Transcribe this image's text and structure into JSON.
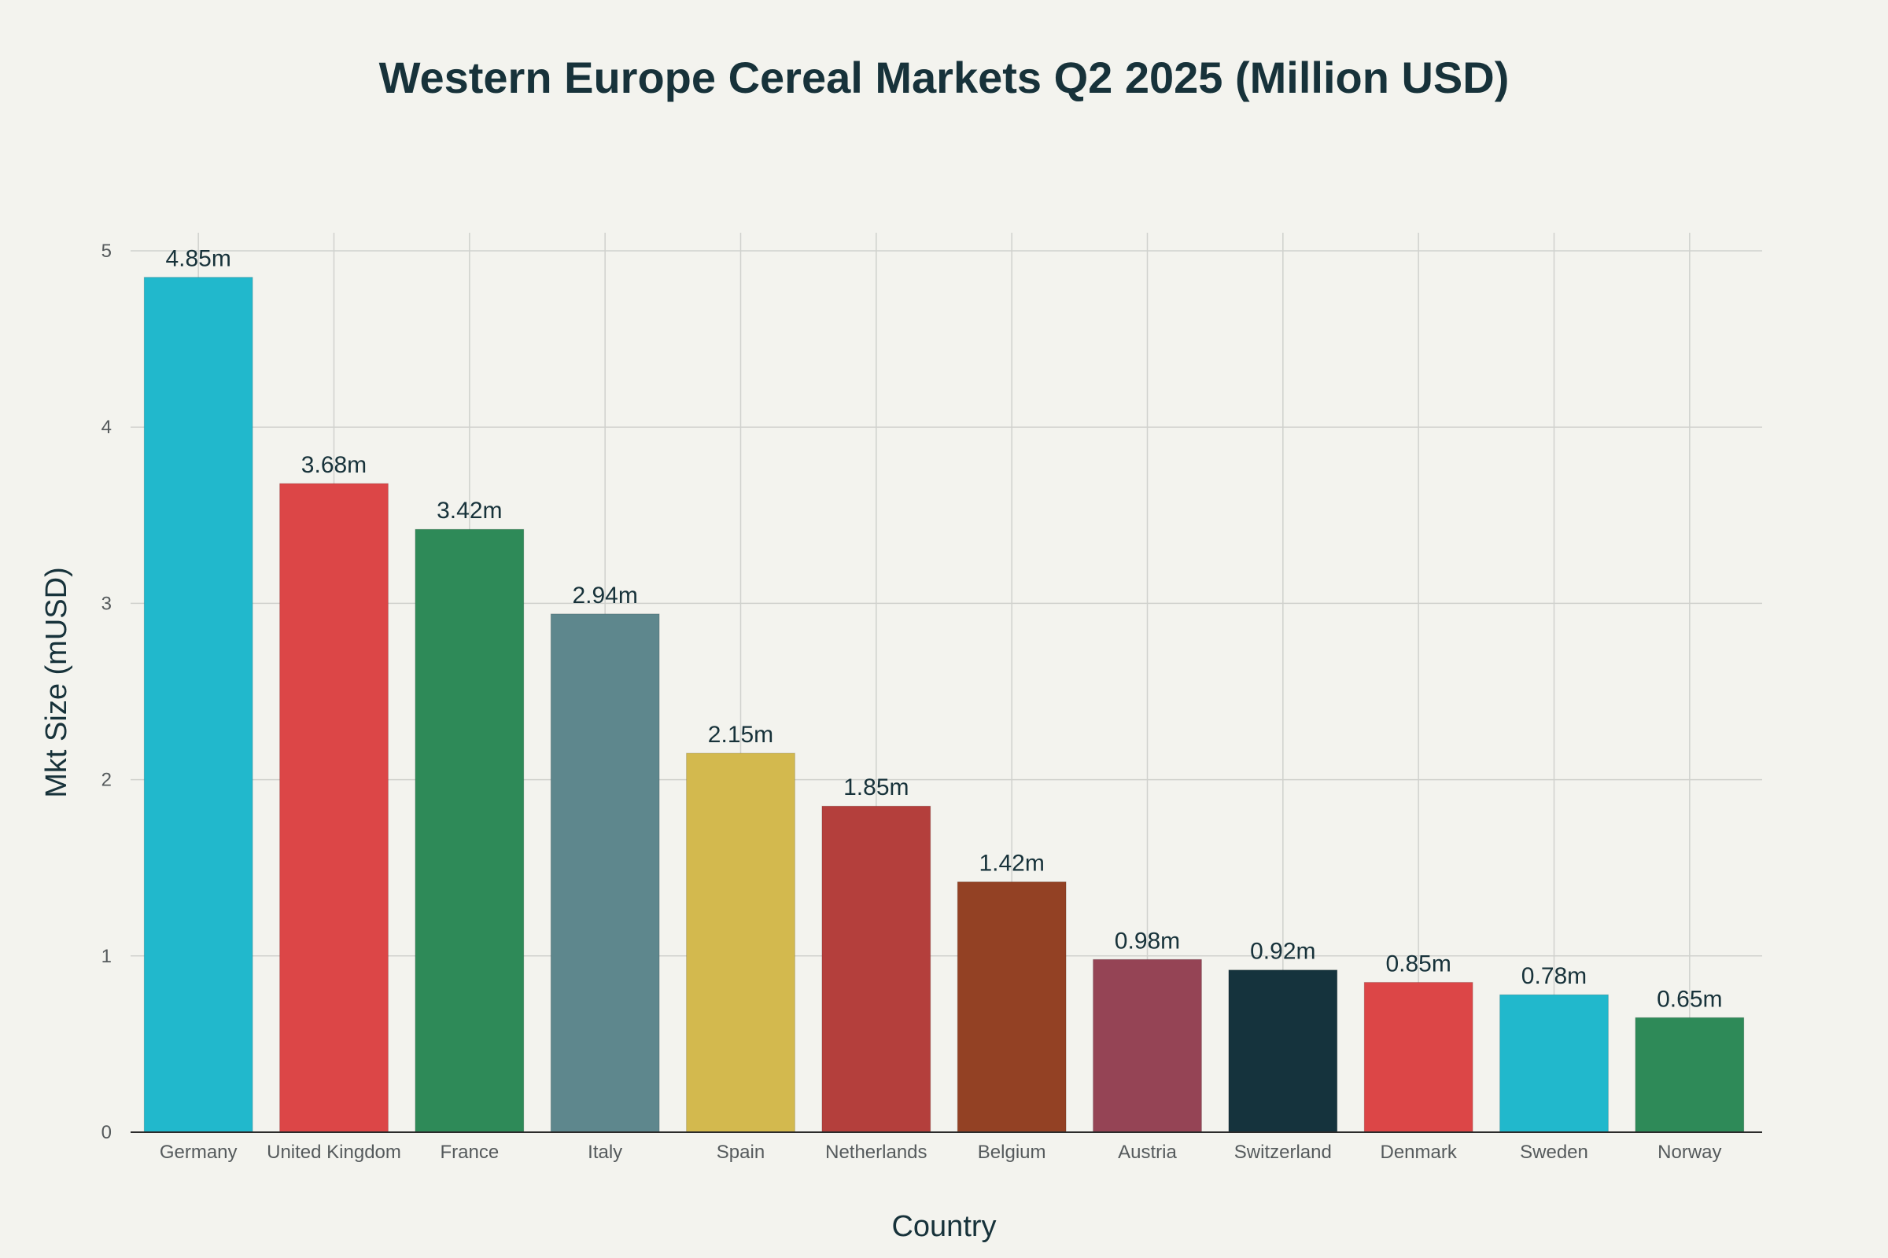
{
  "chart_data": {
    "type": "bar",
    "title": "Western Europe Cereal Markets Q2 2025 (Million USD)",
    "xlabel": "Country",
    "ylabel": "Mkt Size (mUSD)",
    "ylim": [
      0,
      5
    ],
    "yticks": [
      0,
      1,
      2,
      3,
      4,
      5
    ],
    "grid": true,
    "categories": [
      "Germany",
      "United Kingdom",
      "France",
      "Italy",
      "Spain",
      "Netherlands",
      "Belgium",
      "Austria",
      "Switzerland",
      "Denmark",
      "Sweden",
      "Norway"
    ],
    "values": [
      4.85,
      3.68,
      3.42,
      2.94,
      2.15,
      1.85,
      1.42,
      0.98,
      0.92,
      0.85,
      0.78,
      0.65
    ],
    "data_labels": [
      "4.85m",
      "3.68m",
      "3.42m",
      "2.94m",
      "2.15m",
      "1.85m",
      "1.42m",
      "0.98m",
      "0.92m",
      "0.85m",
      "0.78m",
      "0.65m"
    ],
    "colors": [
      "#21b8cc",
      "#dc4647",
      "#2e8a58",
      "#5e878d",
      "#d3b94e",
      "#b43f3c",
      "#934124",
      "#954455",
      "#15333d",
      "#dc4647",
      "#21b8cc",
      "#2e8a58"
    ]
  }
}
